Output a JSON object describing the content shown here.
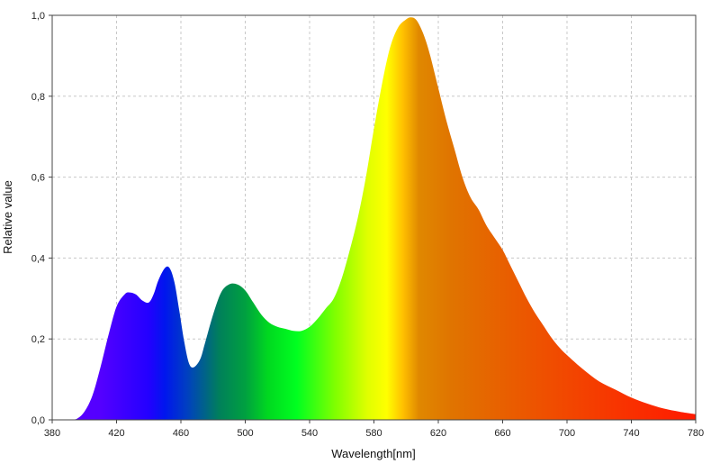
{
  "chart_data": {
    "type": "area",
    "title": "",
    "xlabel": "Wavelength[nm]",
    "ylabel": "Relative value",
    "xlim": [
      380,
      780
    ],
    "ylim": [
      0,
      1.0
    ],
    "grid": true,
    "legend": "none",
    "x_ticks": [
      "380",
      "420",
      "460",
      "500",
      "540",
      "580",
      "620",
      "660",
      "700",
      "740",
      "780"
    ],
    "y_ticks": [
      "0,0",
      "0,2",
      "0,4",
      "0,6",
      "0,8",
      "1,0"
    ],
    "fill": "visible-spectrum gradient (violet to red)",
    "series": [
      {
        "x": [
          380,
          390,
          395,
          400,
          405,
          410,
          415,
          420,
          425,
          428,
          432,
          436,
          440,
          443,
          446,
          450,
          453,
          456,
          459,
          462,
          465,
          468,
          472,
          475,
          480,
          485,
          490,
          495,
          500,
          505,
          510,
          515,
          520,
          525,
          530,
          535,
          540,
          545,
          550,
          555,
          560,
          565,
          570,
          575,
          580,
          585,
          590,
          595,
          600,
          603,
          606,
          609,
          612,
          615,
          620,
          625,
          630,
          635,
          640,
          645,
          650,
          655,
          660,
          665,
          670,
          675,
          680,
          685,
          690,
          695,
          700,
          710,
          720,
          730,
          740,
          750,
          760,
          770,
          780
        ],
        "values": [
          0,
          0,
          0.002,
          0.02,
          0.06,
          0.13,
          0.21,
          0.28,
          0.31,
          0.315,
          0.31,
          0.295,
          0.29,
          0.31,
          0.345,
          0.375,
          0.375,
          0.34,
          0.27,
          0.195,
          0.14,
          0.13,
          0.15,
          0.19,
          0.26,
          0.315,
          0.335,
          0.335,
          0.32,
          0.29,
          0.26,
          0.24,
          0.23,
          0.225,
          0.22,
          0.22,
          0.23,
          0.25,
          0.275,
          0.3,
          0.35,
          0.42,
          0.5,
          0.6,
          0.72,
          0.83,
          0.92,
          0.97,
          0.99,
          0.995,
          0.99,
          0.97,
          0.94,
          0.9,
          0.82,
          0.74,
          0.67,
          0.6,
          0.55,
          0.52,
          0.48,
          0.45,
          0.42,
          0.38,
          0.34,
          0.3,
          0.265,
          0.235,
          0.205,
          0.18,
          0.16,
          0.125,
          0.095,
          0.075,
          0.055,
          0.04,
          0.028,
          0.02,
          0.014
        ]
      }
    ]
  }
}
